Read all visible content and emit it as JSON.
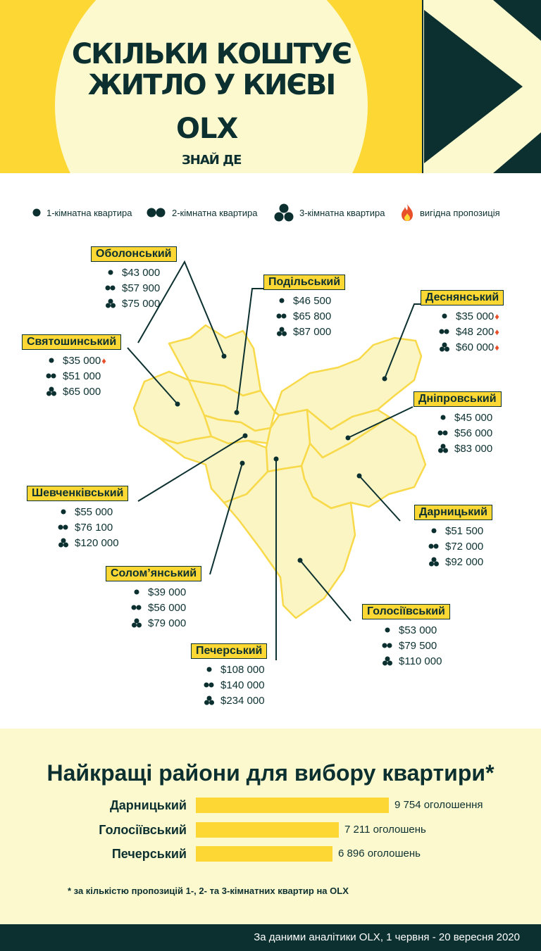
{
  "header": {
    "title_line1": "СКІЛЬКИ КОШТУЄ",
    "title_line2": "ЖИТЛО У КИЄВІ",
    "logo": "OLX",
    "tagline": "ЗНАЙ ДЕ"
  },
  "legend": {
    "one_room": "1-кімнатна квартира",
    "two_room": "2-кімнатна квартира",
    "three_room": "3-кімнатна квартира",
    "deal": "вигідна пропозиція"
  },
  "districts": {
    "obolonskyi": {
      "name": "Оболонський",
      "p1": "$43 000",
      "p2": "$57 900",
      "p3": "$75 000"
    },
    "podilskyi": {
      "name": "Подільський",
      "p1": "$46 500",
      "p2": "$65 800",
      "p3": "$87 000"
    },
    "desnianskyi": {
      "name": "Деснянський",
      "p1": "$35 000",
      "p2": "$48 200",
      "p3": "$60 000"
    },
    "sviatoshynskyi": {
      "name": "Святошинський",
      "p1": "$35 000",
      "p2": "$51 000",
      "p3": "$65 000"
    },
    "dniprovskyi": {
      "name": "Дніпровський",
      "p1": "$45 000",
      "p2": "$56 000",
      "p3": "$83 000"
    },
    "shevchenkivskyi": {
      "name": "Шевченківський",
      "p1": "$55 000",
      "p2": "$76 100",
      "p3": "$120 000"
    },
    "darnytskyi": {
      "name": "Дарницький",
      "p1": "$51 500",
      "p2": "$72 000",
      "p3": "$92 000"
    },
    "solomianskyi": {
      "name": "Солом’янський",
      "p1": "$39 000",
      "p2": "$56 000",
      "p3": "$79 000"
    },
    "holosiivskyi": {
      "name": "Голосіївський",
      "p1": "$53 000",
      "p2": "$79 500",
      "p3": "$110 000"
    },
    "pecherskyi": {
      "name": "Печерський",
      "p1": "$108 000",
      "p2": "$140 000",
      "p3": "$234 000"
    }
  },
  "best": {
    "title": "Найкращі райони для вибору квартири*",
    "rows": [
      {
        "name": "Дарницький",
        "count": 9754,
        "label": "9 754 оголошення"
      },
      {
        "name": "Голосіївський",
        "count": 7211,
        "label": "7 211 оголошень"
      },
      {
        "name": "Печерський",
        "count": 6896,
        "label": "6 896 оголошень"
      }
    ],
    "footnote": "* за кількістю пропозицій 1-, 2- та 3-кімнатних квартир на OLX"
  },
  "footer": {
    "text": "За даними аналітики OLX, 1 червня - 20 вересня 2020"
  },
  "colors": {
    "dark": "#0c3030",
    "yellow": "#fdd835",
    "cream": "#fdf9cf",
    "map_fill": "#faf5c3",
    "fire": "#e8502a"
  }
}
